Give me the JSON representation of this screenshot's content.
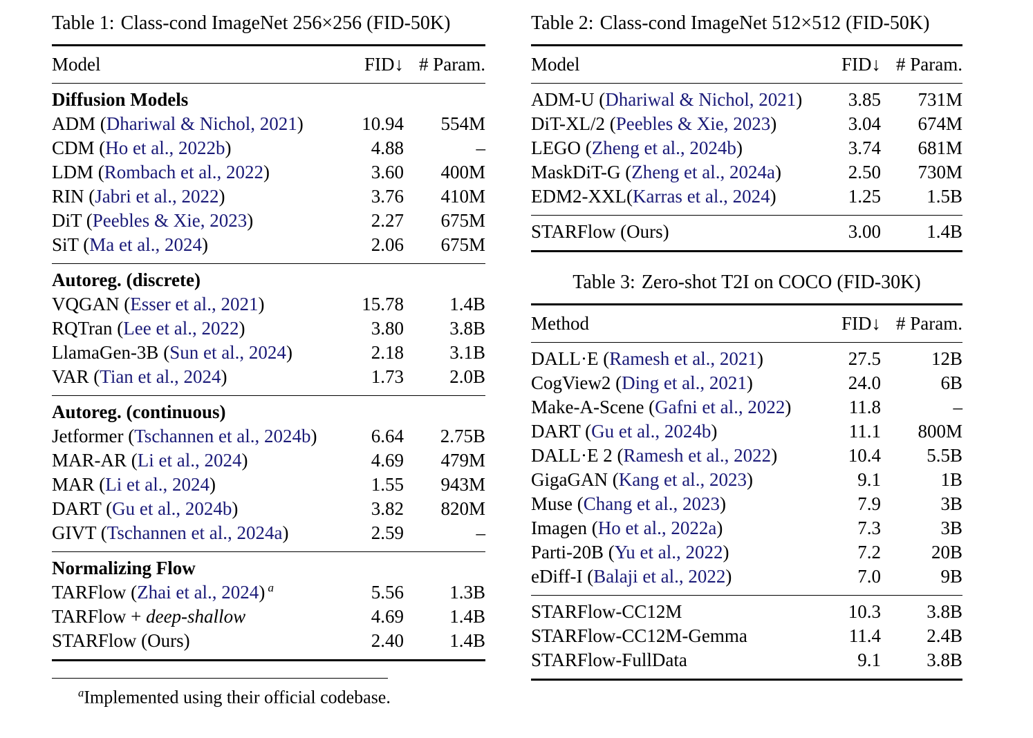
{
  "colors": {
    "background": "#ffffff",
    "text": "#000000",
    "rule": "#000000",
    "citation_link": "#1a1a78"
  },
  "tables": [
    {
      "caption_label": "Table 1:",
      "caption_text": "Class-cond ImageNet 256×256 (FID-50K)",
      "columns": [
        "Model",
        "FID↓",
        "# Param."
      ],
      "sections": [
        {
          "title": "Diffusion Models",
          "rows": [
            {
              "model": [
                {
                  "t": "ADM ("
                },
                {
                  "t": "Dhariwal & Nichol, 2021",
                  "s": "cite"
                },
                {
                  "t": ")"
                }
              ],
              "fid": "10.94",
              "param": "554M"
            },
            {
              "model": [
                {
                  "t": "CDM ("
                },
                {
                  "t": "Ho et al., 2022b",
                  "s": "cite"
                },
                {
                  "t": ")"
                }
              ],
              "fid": "4.88",
              "param": "–"
            },
            {
              "model": [
                {
                  "t": "LDM ("
                },
                {
                  "t": "Rombach et al., 2022",
                  "s": "cite"
                },
                {
                  "t": ")"
                }
              ],
              "fid": "3.60",
              "param": "400M"
            },
            {
              "model": [
                {
                  "t": "RIN ("
                },
                {
                  "t": "Jabri et al., 2022",
                  "s": "cite"
                },
                {
                  "t": ")"
                }
              ],
              "fid": "3.76",
              "param": "410M"
            },
            {
              "model": [
                {
                  "t": "DiT ("
                },
                {
                  "t": "Peebles & Xie, 2023",
                  "s": "cite"
                },
                {
                  "t": ")"
                }
              ],
              "fid": "2.27",
              "param": "675M"
            },
            {
              "model": [
                {
                  "t": "SiT ("
                },
                {
                  "t": "Ma et al., 2024",
                  "s": "cite"
                },
                {
                  "t": ")"
                }
              ],
              "fid": "2.06",
              "param": "675M"
            }
          ]
        },
        {
          "title": "Autoreg. (discrete)",
          "rows": [
            {
              "model": [
                {
                  "t": "VQGAN ("
                },
                {
                  "t": "Esser et al., 2021",
                  "s": "cite"
                },
                {
                  "t": ")"
                }
              ],
              "fid": "15.78",
              "param": "1.4B"
            },
            {
              "model": [
                {
                  "t": "RQTran ("
                },
                {
                  "t": "Lee et al., 2022",
                  "s": "cite"
                },
                {
                  "t": ")"
                }
              ],
              "fid": "3.80",
              "param": "3.8B"
            },
            {
              "model": [
                {
                  "t": "LlamaGen-3B ("
                },
                {
                  "t": "Sun et al., 2024",
                  "s": "cite"
                },
                {
                  "t": ")"
                }
              ],
              "fid": "2.18",
              "param": "3.1B"
            },
            {
              "model": [
                {
                  "t": "VAR ("
                },
                {
                  "t": "Tian et al., 2024",
                  "s": "cite"
                },
                {
                  "t": ")"
                }
              ],
              "fid": "1.73",
              "param": "2.0B"
            }
          ]
        },
        {
          "title": "Autoreg. (continuous)",
          "rows": [
            {
              "model": [
                {
                  "t": "Jetformer ("
                },
                {
                  "t": "Tschannen et al., 2024b",
                  "s": "cite"
                },
                {
                  "t": ")"
                }
              ],
              "fid": "6.64",
              "param": "2.75B"
            },
            {
              "model": [
                {
                  "t": "MAR-AR ("
                },
                {
                  "t": "Li et al., 2024",
                  "s": "cite"
                },
                {
                  "t": ")"
                }
              ],
              "fid": "4.69",
              "param": "479M"
            },
            {
              "model": [
                {
                  "t": "MAR ("
                },
                {
                  "t": "Li et al., 2024",
                  "s": "cite"
                },
                {
                  "t": ")"
                }
              ],
              "fid": "1.55",
              "param": "943M"
            },
            {
              "model": [
                {
                  "t": "DART ("
                },
                {
                  "t": "Gu et al., 2024b",
                  "s": "cite"
                },
                {
                  "t": ")"
                }
              ],
              "fid": "3.82",
              "param": "820M"
            },
            {
              "model": [
                {
                  "t": "GIVT ("
                },
                {
                  "t": "Tschannen et al., 2024a",
                  "s": "cite"
                },
                {
                  "t": ")"
                }
              ],
              "fid": "2.59",
              "param": "–"
            }
          ]
        },
        {
          "title": "Normalizing Flow",
          "rows": [
            {
              "model": [
                {
                  "t": "TARFlow ("
                },
                {
                  "t": "Zhai et al., 2024",
                  "s": "cite"
                },
                {
                  "t": ")"
                },
                {
                  "t": "a",
                  "s": "sup"
                }
              ],
              "fid": "5.56",
              "param": "1.3B"
            },
            {
              "model": [
                {
                  "t": "TARFlow + "
                },
                {
                  "t": "deep-shallow",
                  "s": "italic"
                }
              ],
              "fid": "4.69",
              "param": "1.4B"
            },
            {
              "model": [
                {
                  "t": "STARFlow (Ours)"
                }
              ],
              "fid": "2.40",
              "param": "1.4B"
            }
          ]
        }
      ],
      "footnote": {
        "marker": "a",
        "text": "Implemented using their official codebase."
      }
    },
    {
      "caption_label": "Table 2:",
      "caption_text": "Class-cond ImageNet 512×512 (FID-50K)",
      "columns": [
        "Model",
        "FID↓",
        "# Param."
      ],
      "sections": [
        {
          "title": null,
          "rows": [
            {
              "model": [
                {
                  "t": "ADM-U ("
                },
                {
                  "t": "Dhariwal & Nichol, 2021",
                  "s": "cite"
                },
                {
                  "t": ")"
                }
              ],
              "fid": "3.85",
              "param": "731M"
            },
            {
              "model": [
                {
                  "t": "DiT-XL/2 ("
                },
                {
                  "t": "Peebles & Xie, 2023",
                  "s": "cite"
                },
                {
                  "t": ")"
                }
              ],
              "fid": "3.04",
              "param": "674M"
            },
            {
              "model": [
                {
                  "t": "LEGO ("
                },
                {
                  "t": "Zheng et al., 2024b",
                  "s": "cite"
                },
                {
                  "t": ")"
                }
              ],
              "fid": "3.74",
              "param": "681M"
            },
            {
              "model": [
                {
                  "t": "MaskDiT-G ("
                },
                {
                  "t": "Zheng et al., 2024a",
                  "s": "cite"
                },
                {
                  "t": ")"
                }
              ],
              "fid": "2.50",
              "param": "730M"
            },
            {
              "model": [
                {
                  "t": "EDM2-XXL("
                },
                {
                  "t": "Karras et al., 2024",
                  "s": "cite"
                },
                {
                  "t": ")"
                }
              ],
              "fid": "1.25",
              "param": "1.5B"
            }
          ]
        },
        {
          "title": null,
          "rows": [
            {
              "model": [
                {
                  "t": "STARFlow (Ours)"
                }
              ],
              "fid": "3.00",
              "param": "1.4B"
            }
          ]
        }
      ]
    },
    {
      "caption_label": "Table 3:",
      "caption_text": "Zero-shot T2I on COCO (FID-30K)",
      "columns": [
        "Method",
        "FID↓",
        "# Param."
      ],
      "sections": [
        {
          "title": null,
          "rows": [
            {
              "model": [
                {
                  "t": "DALL·E ("
                },
                {
                  "t": "Ramesh et al., 2021",
                  "s": "cite"
                },
                {
                  "t": ")"
                }
              ],
              "fid": "27.5",
              "param": "12B"
            },
            {
              "model": [
                {
                  "t": "CogView2 ("
                },
                {
                  "t": "Ding et al., 2021",
                  "s": "cite"
                },
                {
                  "t": ")"
                }
              ],
              "fid": "24.0",
              "param": "6B"
            },
            {
              "model": [
                {
                  "t": "Make-A-Scene ("
                },
                {
                  "t": "Gafni et al., 2022",
                  "s": "cite"
                },
                {
                  "t": ")"
                }
              ],
              "fid": "11.8",
              "param": "–"
            },
            {
              "model": [
                {
                  "t": "DART ("
                },
                {
                  "t": "Gu et al., 2024b",
                  "s": "cite"
                },
                {
                  "t": ")"
                }
              ],
              "fid": "11.1",
              "param": "800M"
            },
            {
              "model": [
                {
                  "t": "DALL·E 2 ("
                },
                {
                  "t": "Ramesh et al., 2022",
                  "s": "cite"
                },
                {
                  "t": ")"
                }
              ],
              "fid": "10.4",
              "param": "5.5B"
            },
            {
              "model": [
                {
                  "t": "GigaGAN ("
                },
                {
                  "t": "Kang et al., 2023",
                  "s": "cite"
                },
                {
                  "t": ")"
                }
              ],
              "fid": "9.1",
              "param": "1B"
            },
            {
              "model": [
                {
                  "t": "Muse ("
                },
                {
                  "t": "Chang et al., 2023",
                  "s": "cite"
                },
                {
                  "t": ")"
                }
              ],
              "fid": "7.9",
              "param": "3B"
            },
            {
              "model": [
                {
                  "t": "Imagen ("
                },
                {
                  "t": "Ho et al., 2022a",
                  "s": "cite"
                },
                {
                  "t": ")"
                }
              ],
              "fid": "7.3",
              "param": "3B"
            },
            {
              "model": [
                {
                  "t": "Parti-20B ("
                },
                {
                  "t": "Yu et al., 2022",
                  "s": "cite"
                },
                {
                  "t": ")"
                }
              ],
              "fid": "7.2",
              "param": "20B"
            },
            {
              "model": [
                {
                  "t": "eDiff-I ("
                },
                {
                  "t": "Balaji et al., 2022",
                  "s": "cite"
                },
                {
                  "t": ")"
                }
              ],
              "fid": "7.0",
              "param": "9B"
            }
          ]
        },
        {
          "title": null,
          "rows": [
            {
              "model": [
                {
                  "t": "STARFlow-CC12M"
                }
              ],
              "fid": "10.3",
              "param": "3.8B"
            },
            {
              "model": [
                {
                  "t": "STARFlow-CC12M-Gemma"
                }
              ],
              "fid": "11.4",
              "param": "2.4B"
            },
            {
              "model": [
                {
                  "t": "STARFlow-FullData"
                }
              ],
              "fid": "9.1",
              "param": "3.8B"
            }
          ]
        }
      ]
    }
  ]
}
